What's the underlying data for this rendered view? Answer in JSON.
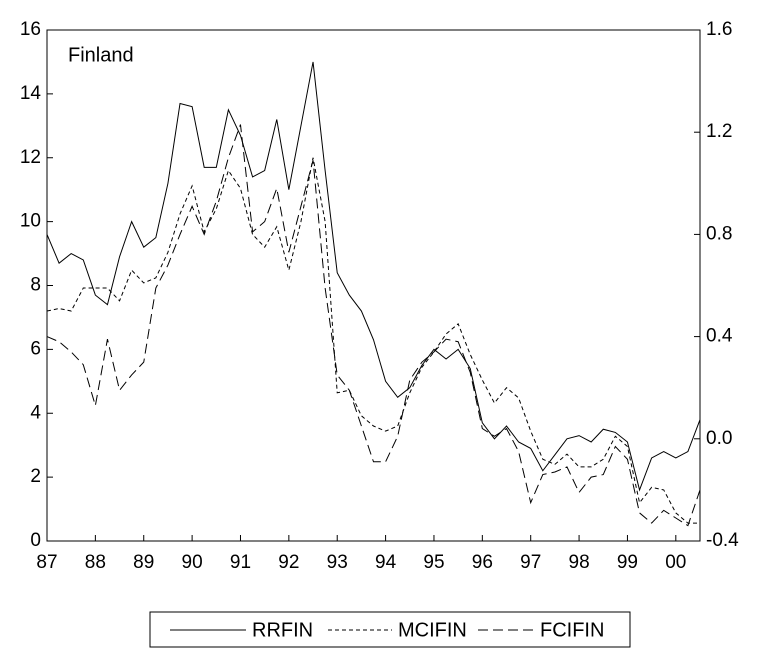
{
  "chart_data": {
    "type": "line",
    "annotation": "Finland",
    "categories": [
      "87",
      null,
      null,
      null,
      "88",
      null,
      null,
      null,
      "89",
      null,
      null,
      null,
      "90",
      null,
      null,
      null,
      "91",
      null,
      null,
      null,
      "92",
      null,
      null,
      null,
      "93",
      null,
      null,
      null,
      "94",
      null,
      null,
      null,
      "95",
      null,
      null,
      null,
      "96",
      null,
      null,
      null,
      "97",
      null,
      null,
      null,
      "98",
      null,
      null,
      null,
      "99",
      null,
      null,
      null,
      "00",
      null,
      null
    ],
    "ylim": [
      0,
      16
    ],
    "yticks": [
      0,
      2,
      4,
      6,
      8,
      10,
      12,
      14,
      16
    ],
    "y2lim": [
      -0.4,
      1.6
    ],
    "y2ticks": [
      -0.4,
      {
        "value": 0,
        "label": "0.0"
      },
      0.4,
      0.8,
      1.2,
      1.6
    ],
    "series": [
      {
        "name": "RRFIN",
        "color": "#000000",
        "dash": "none",
        "values": [
          9.6,
          8.7,
          9.0,
          8.8,
          7.7,
          7.4,
          8.9,
          10.0,
          9.2,
          9.5,
          11.2,
          13.7,
          13.6,
          11.7,
          11.7,
          13.5,
          12.7,
          11.4,
          11.6,
          13.2,
          11.0,
          13.0,
          15.0,
          11.6,
          8.4,
          7.7,
          7.2,
          6.3,
          5.0,
          4.5,
          4.8,
          5.5,
          6.0,
          5.7,
          6.0,
          5.4,
          3.7,
          3.2,
          3.6,
          3.1,
          2.9,
          2.2,
          2.7,
          3.2,
          3.3,
          3.1,
          3.5,
          3.4,
          3.1,
          1.6,
          2.6,
          2.8,
          2.6,
          2.8,
          3.8
        ]
      },
      {
        "name": "MCIFIN",
        "color": "#000000",
        "dash": "4 3",
        "axis": "y2",
        "values": [
          0.5,
          0.51,
          0.5,
          0.59,
          0.59,
          0.59,
          0.54,
          0.66,
          0.61,
          0.63,
          0.73,
          0.88,
          0.99,
          0.81,
          0.9,
          1.05,
          0.98,
          0.8,
          0.75,
          0.83,
          0.66,
          0.85,
          1.1,
          0.85,
          0.18,
          0.19,
          0.09,
          0.05,
          0.03,
          0.05,
          0.18,
          0.28,
          0.34,
          0.41,
          0.45,
          0.33,
          0.23,
          0.14,
          0.2,
          0.16,
          0.03,
          -0.08,
          -0.1,
          -0.06,
          -0.11,
          -0.11,
          -0.08,
          0.01,
          -0.03,
          -0.25,
          -0.19,
          -0.2,
          -0.29,
          -0.33,
          -0.33
        ]
      },
      {
        "name": "FCIFIN",
        "color": "#000000",
        "dash": "10 5",
        "axis": "y2",
        "values": [
          0.4,
          0.38,
          0.34,
          0.29,
          0.13,
          0.39,
          0.19,
          0.25,
          0.3,
          0.59,
          0.68,
          0.8,
          0.91,
          0.8,
          0.93,
          1.1,
          1.23,
          0.81,
          0.85,
          0.98,
          0.73,
          0.91,
          1.09,
          0.59,
          0.25,
          0.19,
          0.05,
          -0.09,
          -0.09,
          0.01,
          0.23,
          0.3,
          0.34,
          0.39,
          0.38,
          0.26,
          0.04,
          0.01,
          0.04,
          -0.05,
          -0.25,
          -0.14,
          -0.13,
          -0.11,
          -0.21,
          -0.15,
          -0.14,
          -0.03,
          -0.08,
          -0.29,
          -0.33,
          -0.28,
          -0.31,
          -0.34,
          -0.2
        ]
      }
    ]
  }
}
